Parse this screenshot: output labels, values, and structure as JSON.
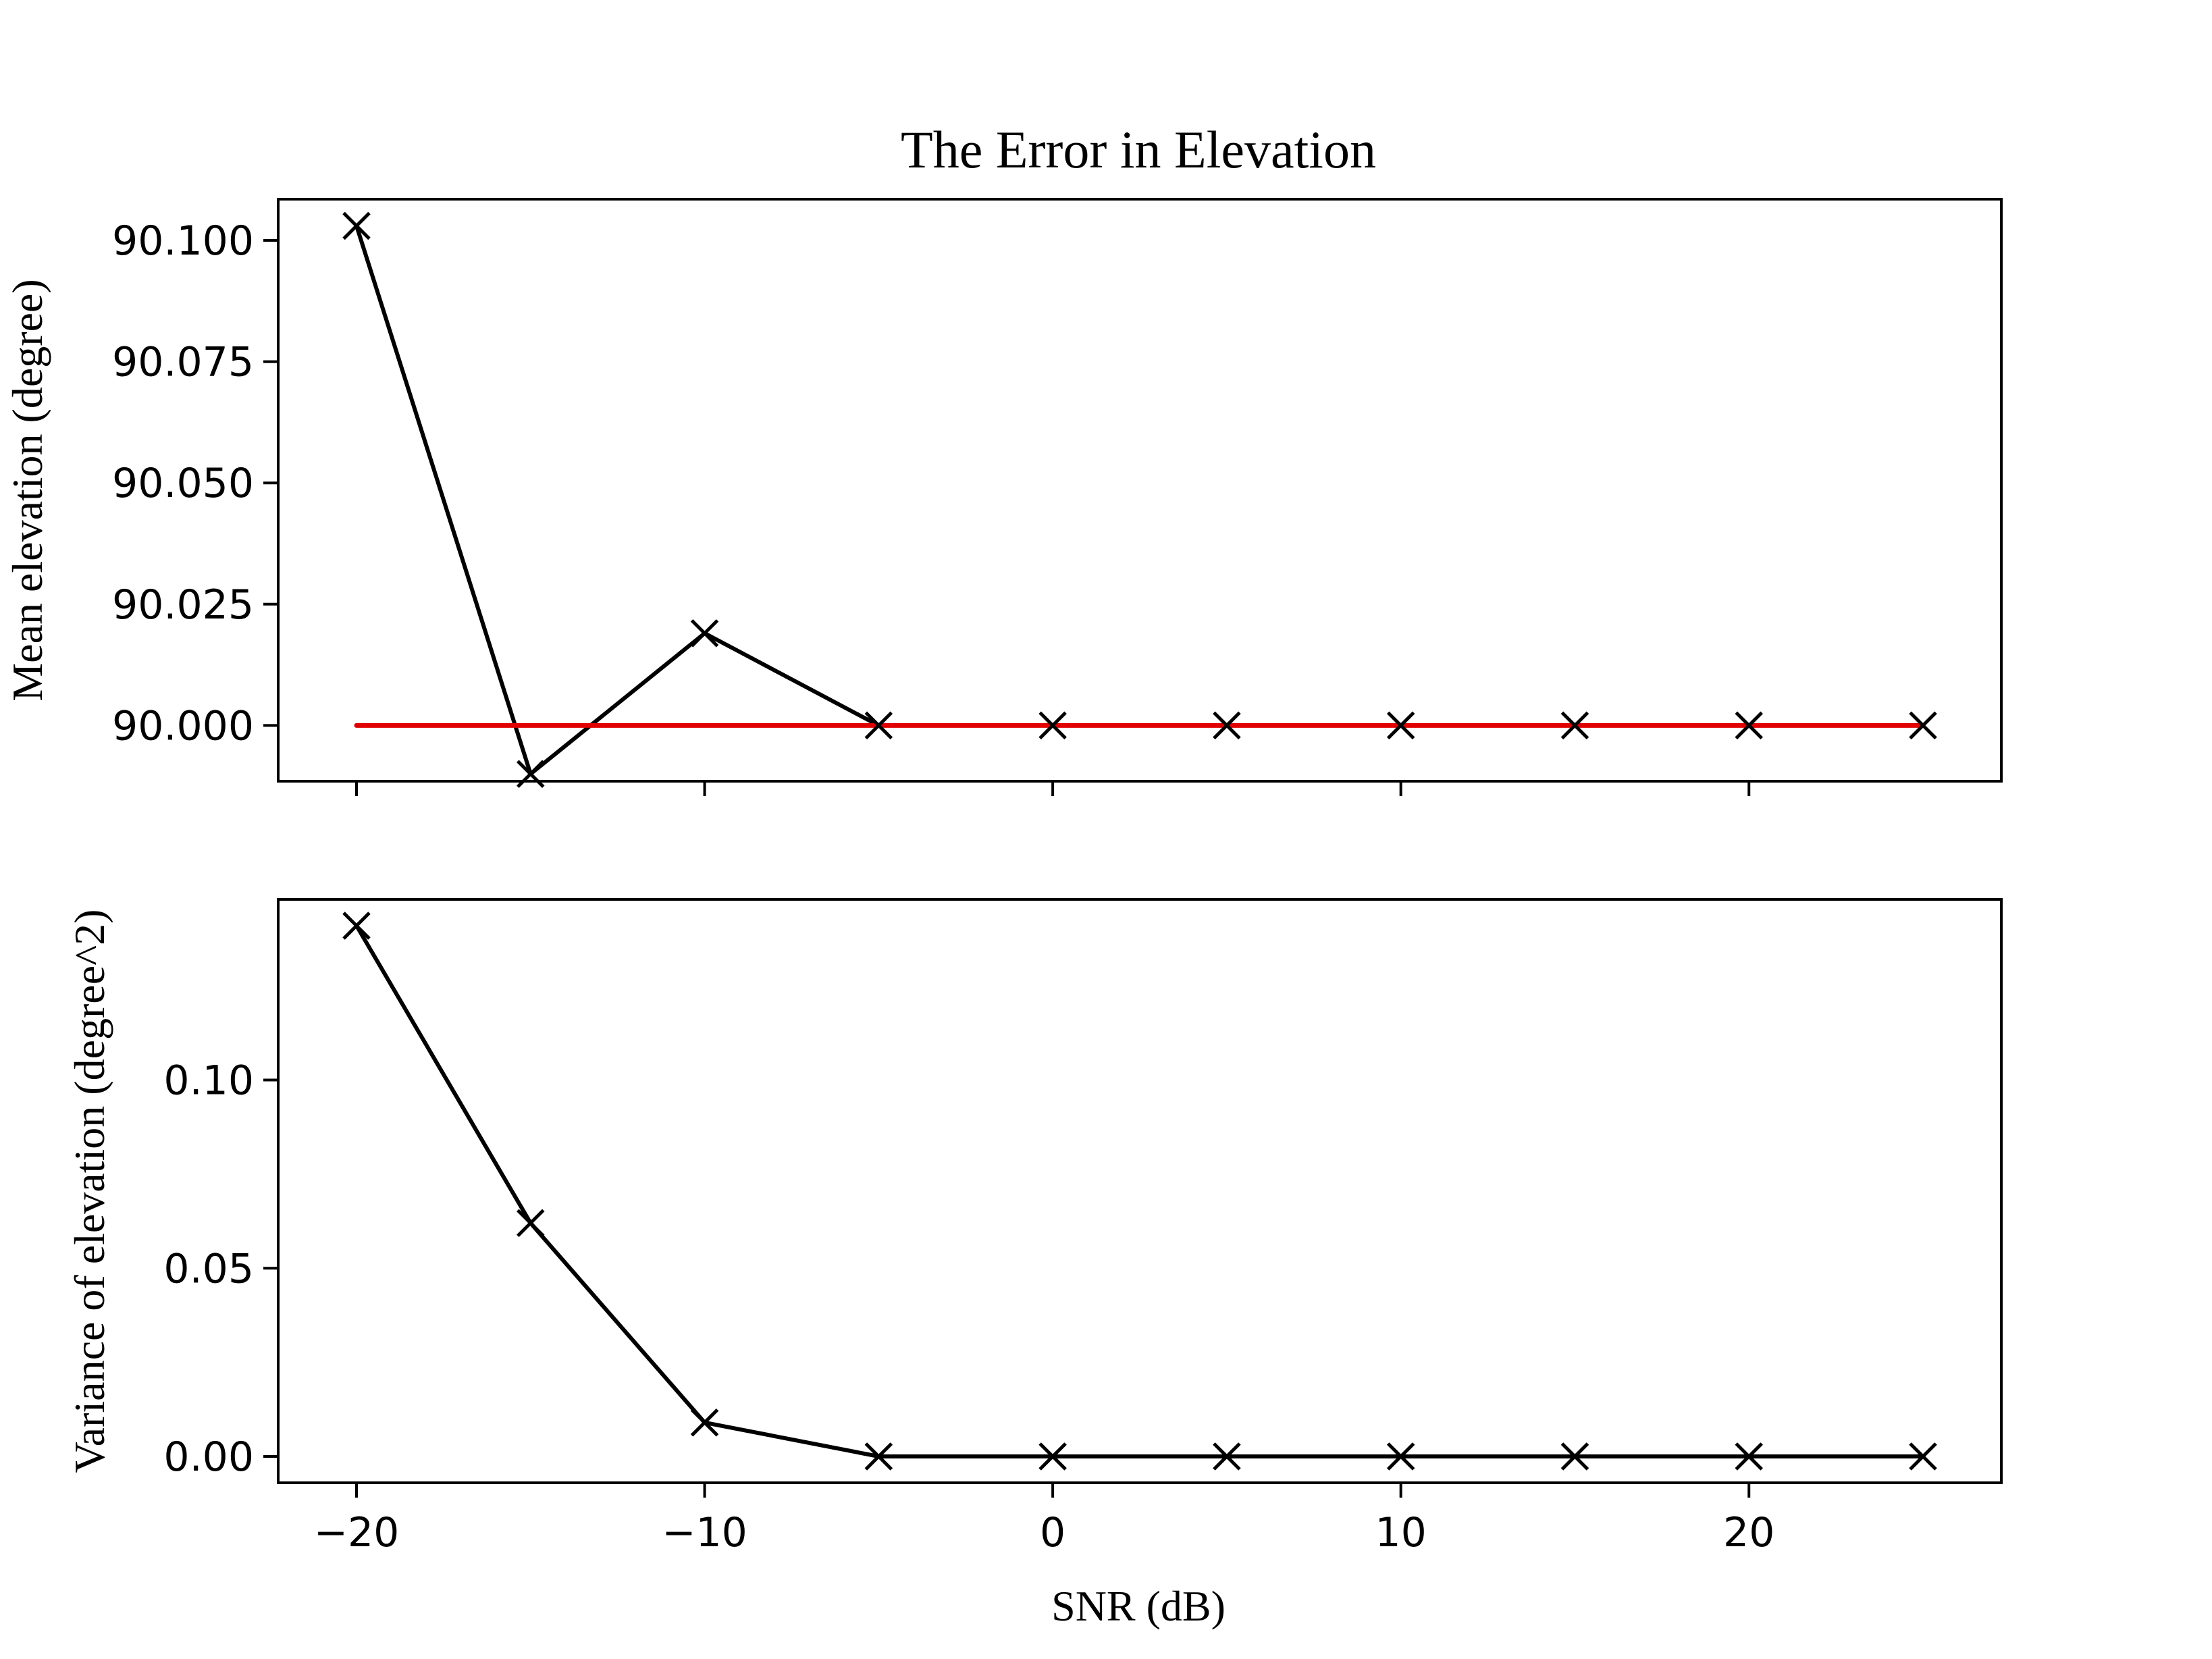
{
  "chart_data": [
    {
      "type": "line",
      "title": "The Error in Elevation",
      "xlabel": "",
      "ylabel": "Mean elevation (degree)",
      "x": [
        -20,
        -15,
        -10,
        -5,
        0,
        5,
        10,
        15,
        20,
        25
      ],
      "xlim": [
        -22.25,
        27.25
      ],
      "ylim": [
        89.9885,
        90.1085
      ],
      "x_ticks": [
        -20,
        -10,
        0,
        10,
        20
      ],
      "y_ticks": [
        90.0,
        90.025,
        90.05,
        90.075,
        90.1
      ],
      "y_tick_labels": [
        "90.000",
        "90.025",
        "90.050",
        "90.075",
        "90.100"
      ],
      "x_tick_labels_visible": false,
      "grid": false,
      "series": [
        {
          "values": [
            90.103,
            89.99,
            90.019,
            90.0,
            90.0,
            90.0,
            90.0,
            90.0,
            90.0,
            90.0
          ],
          "color": "#000000",
          "marker": "x"
        },
        {
          "values": [
            90.0,
            90.0,
            90.0,
            90.0,
            90.0,
            90.0,
            90.0,
            90.0,
            90.0,
            90.0
          ],
          "color": "#e00000",
          "marker": "none"
        }
      ]
    },
    {
      "type": "line",
      "title": "",
      "xlabel": "SNR (dB)",
      "ylabel": "Variance of elevation (degree^2)",
      "x": [
        -20,
        -15,
        -10,
        -5,
        0,
        5,
        10,
        15,
        20,
        25
      ],
      "xlim": [
        -22.25,
        27.25
      ],
      "ylim": [
        -0.007,
        0.148
      ],
      "x_ticks": [
        -20,
        -10,
        0,
        10,
        20
      ],
      "x_tick_labels": [
        "−20",
        "−10",
        "0",
        "10",
        "20"
      ],
      "y_ticks": [
        0.0,
        0.05,
        0.1
      ],
      "y_tick_labels": [
        "0.00",
        "0.05",
        "0.10"
      ],
      "x_tick_labels_visible": true,
      "grid": false,
      "series": [
        {
          "values": [
            0.141,
            0.062,
            0.009,
            0.0,
            0.0,
            0.0,
            0.0,
            0.0,
            0.0,
            0.0
          ],
          "color": "#000000",
          "marker": "x"
        }
      ]
    }
  ]
}
